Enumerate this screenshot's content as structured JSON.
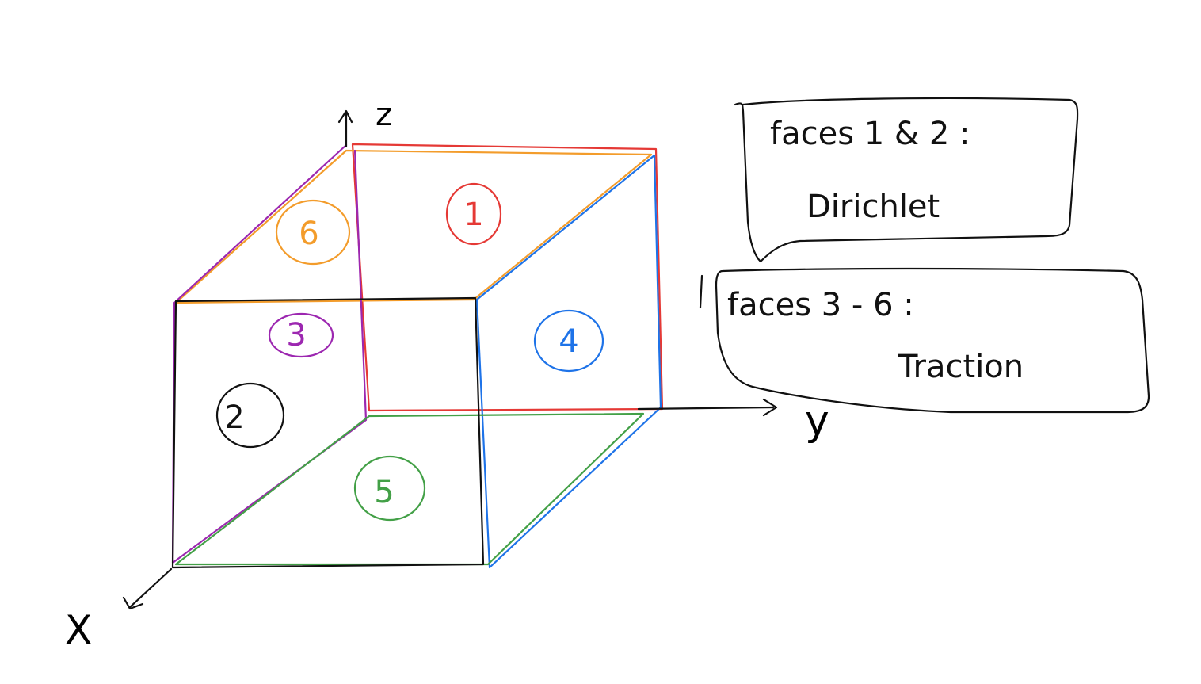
{
  "axes": {
    "x": "X",
    "y": "y",
    "z": "z"
  },
  "faces": [
    {
      "id": "1",
      "label": "1",
      "color": "#e53935"
    },
    {
      "id": "2",
      "label": "2",
      "color": "#111111"
    },
    {
      "id": "3",
      "label": "3",
      "color": "#9c27b0"
    },
    {
      "id": "4",
      "label": "4",
      "color": "#1e73e8"
    },
    {
      "id": "5",
      "label": "5",
      "color": "#43a047"
    },
    {
      "id": "6",
      "label": "6",
      "color": "#f39c2b"
    }
  ],
  "notes": {
    "dirichlet": {
      "line1": "faces 1 & 2 :",
      "line2": "Dirichlet"
    },
    "traction": {
      "line1": "faces 3 - 6 :",
      "line2": "Traction"
    }
  },
  "colors": {
    "ink": "#111111",
    "background": "#ffffff"
  }
}
